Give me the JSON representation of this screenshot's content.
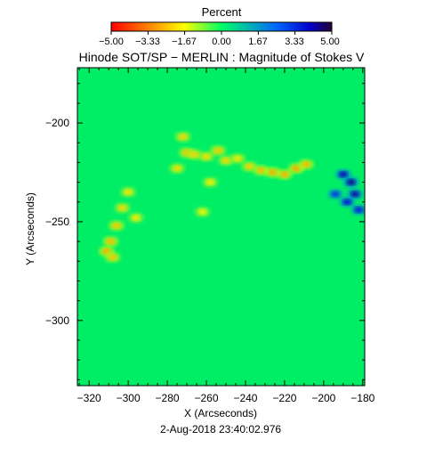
{
  "colorbar": {
    "label": "Percent",
    "tick_labels": [
      "−5.00",
      "−3.33",
      "−1.67",
      "0.00",
      "1.67",
      "3.33",
      "5.00"
    ],
    "range": [
      -5,
      5
    ],
    "colors": [
      "#ff0000",
      "#ffff00",
      "#00ff66",
      "#0000ff",
      "#220033"
    ]
  },
  "chart_data": {
    "type": "heatmap",
    "title": "Hinode SOT/SP − MERLIN : Magnitude of Stokes V",
    "xlabel": "X (Arcseconds)",
    "ylabel": "Y (Arcseconds)",
    "xlim": [
      -326,
      -179
    ],
    "ylim": [
      -333,
      -172
    ],
    "x_ticks": [
      -320,
      -300,
      -280,
      -260,
      -240,
      -220,
      -200,
      -180
    ],
    "x_tick_labels": [
      "−320",
      "−300",
      "−280",
      "−260",
      "−240",
      "−220",
      "−200",
      "−180"
    ],
    "y_ticks": [
      -200,
      -250,
      -300
    ],
    "y_tick_labels": [
      "−200",
      "−250",
      "−300"
    ],
    "background_value": 0,
    "background_color": "#00ee66",
    "features": [
      {
        "x": -272,
        "y": -207,
        "value": -2.2
      },
      {
        "x": -270,
        "y": -215,
        "value": -2.5
      },
      {
        "x": -266,
        "y": -216,
        "value": -2.3
      },
      {
        "x": -260,
        "y": -217,
        "value": -2.1
      },
      {
        "x": -254,
        "y": -214,
        "value": -2.4
      },
      {
        "x": -250,
        "y": -219,
        "value": -2.2
      },
      {
        "x": -244,
        "y": -218,
        "value": -2.0
      },
      {
        "x": -238,
        "y": -222,
        "value": -2.3
      },
      {
        "x": -232,
        "y": -224,
        "value": -2.6
      },
      {
        "x": -226,
        "y": -225,
        "value": -2.8
      },
      {
        "x": -220,
        "y": -226,
        "value": -2.7
      },
      {
        "x": -214,
        "y": -223,
        "value": -2.9
      },
      {
        "x": -209,
        "y": -221,
        "value": -2.6
      },
      {
        "x": -275,
        "y": -223,
        "value": -2.1
      },
      {
        "x": -258,
        "y": -230,
        "value": -1.9
      },
      {
        "x": -262,
        "y": -245,
        "value": -1.8
      },
      {
        "x": -300,
        "y": -235,
        "value": -2.0
      },
      {
        "x": -303,
        "y": -243,
        "value": -2.2
      },
      {
        "x": -306,
        "y": -252,
        "value": -2.4
      },
      {
        "x": -309,
        "y": -260,
        "value": -2.6
      },
      {
        "x": -311,
        "y": -265,
        "value": -2.8
      },
      {
        "x": -308,
        "y": -268,
        "value": -2.4
      },
      {
        "x": -296,
        "y": -248,
        "value": -1.9
      },
      {
        "x": -190,
        "y": -226,
        "value": 4.2
      },
      {
        "x": -186,
        "y": -230,
        "value": 4.5
      },
      {
        "x": -184,
        "y": -236,
        "value": 4.3
      },
      {
        "x": -188,
        "y": -240,
        "value": 3.9
      },
      {
        "x": -182,
        "y": -244,
        "value": 3.7
      },
      {
        "x": -194,
        "y": -236,
        "value": 3.2
      }
    ]
  },
  "footer": {
    "timestamp": "2-Aug-2018 23:40:02.976"
  }
}
